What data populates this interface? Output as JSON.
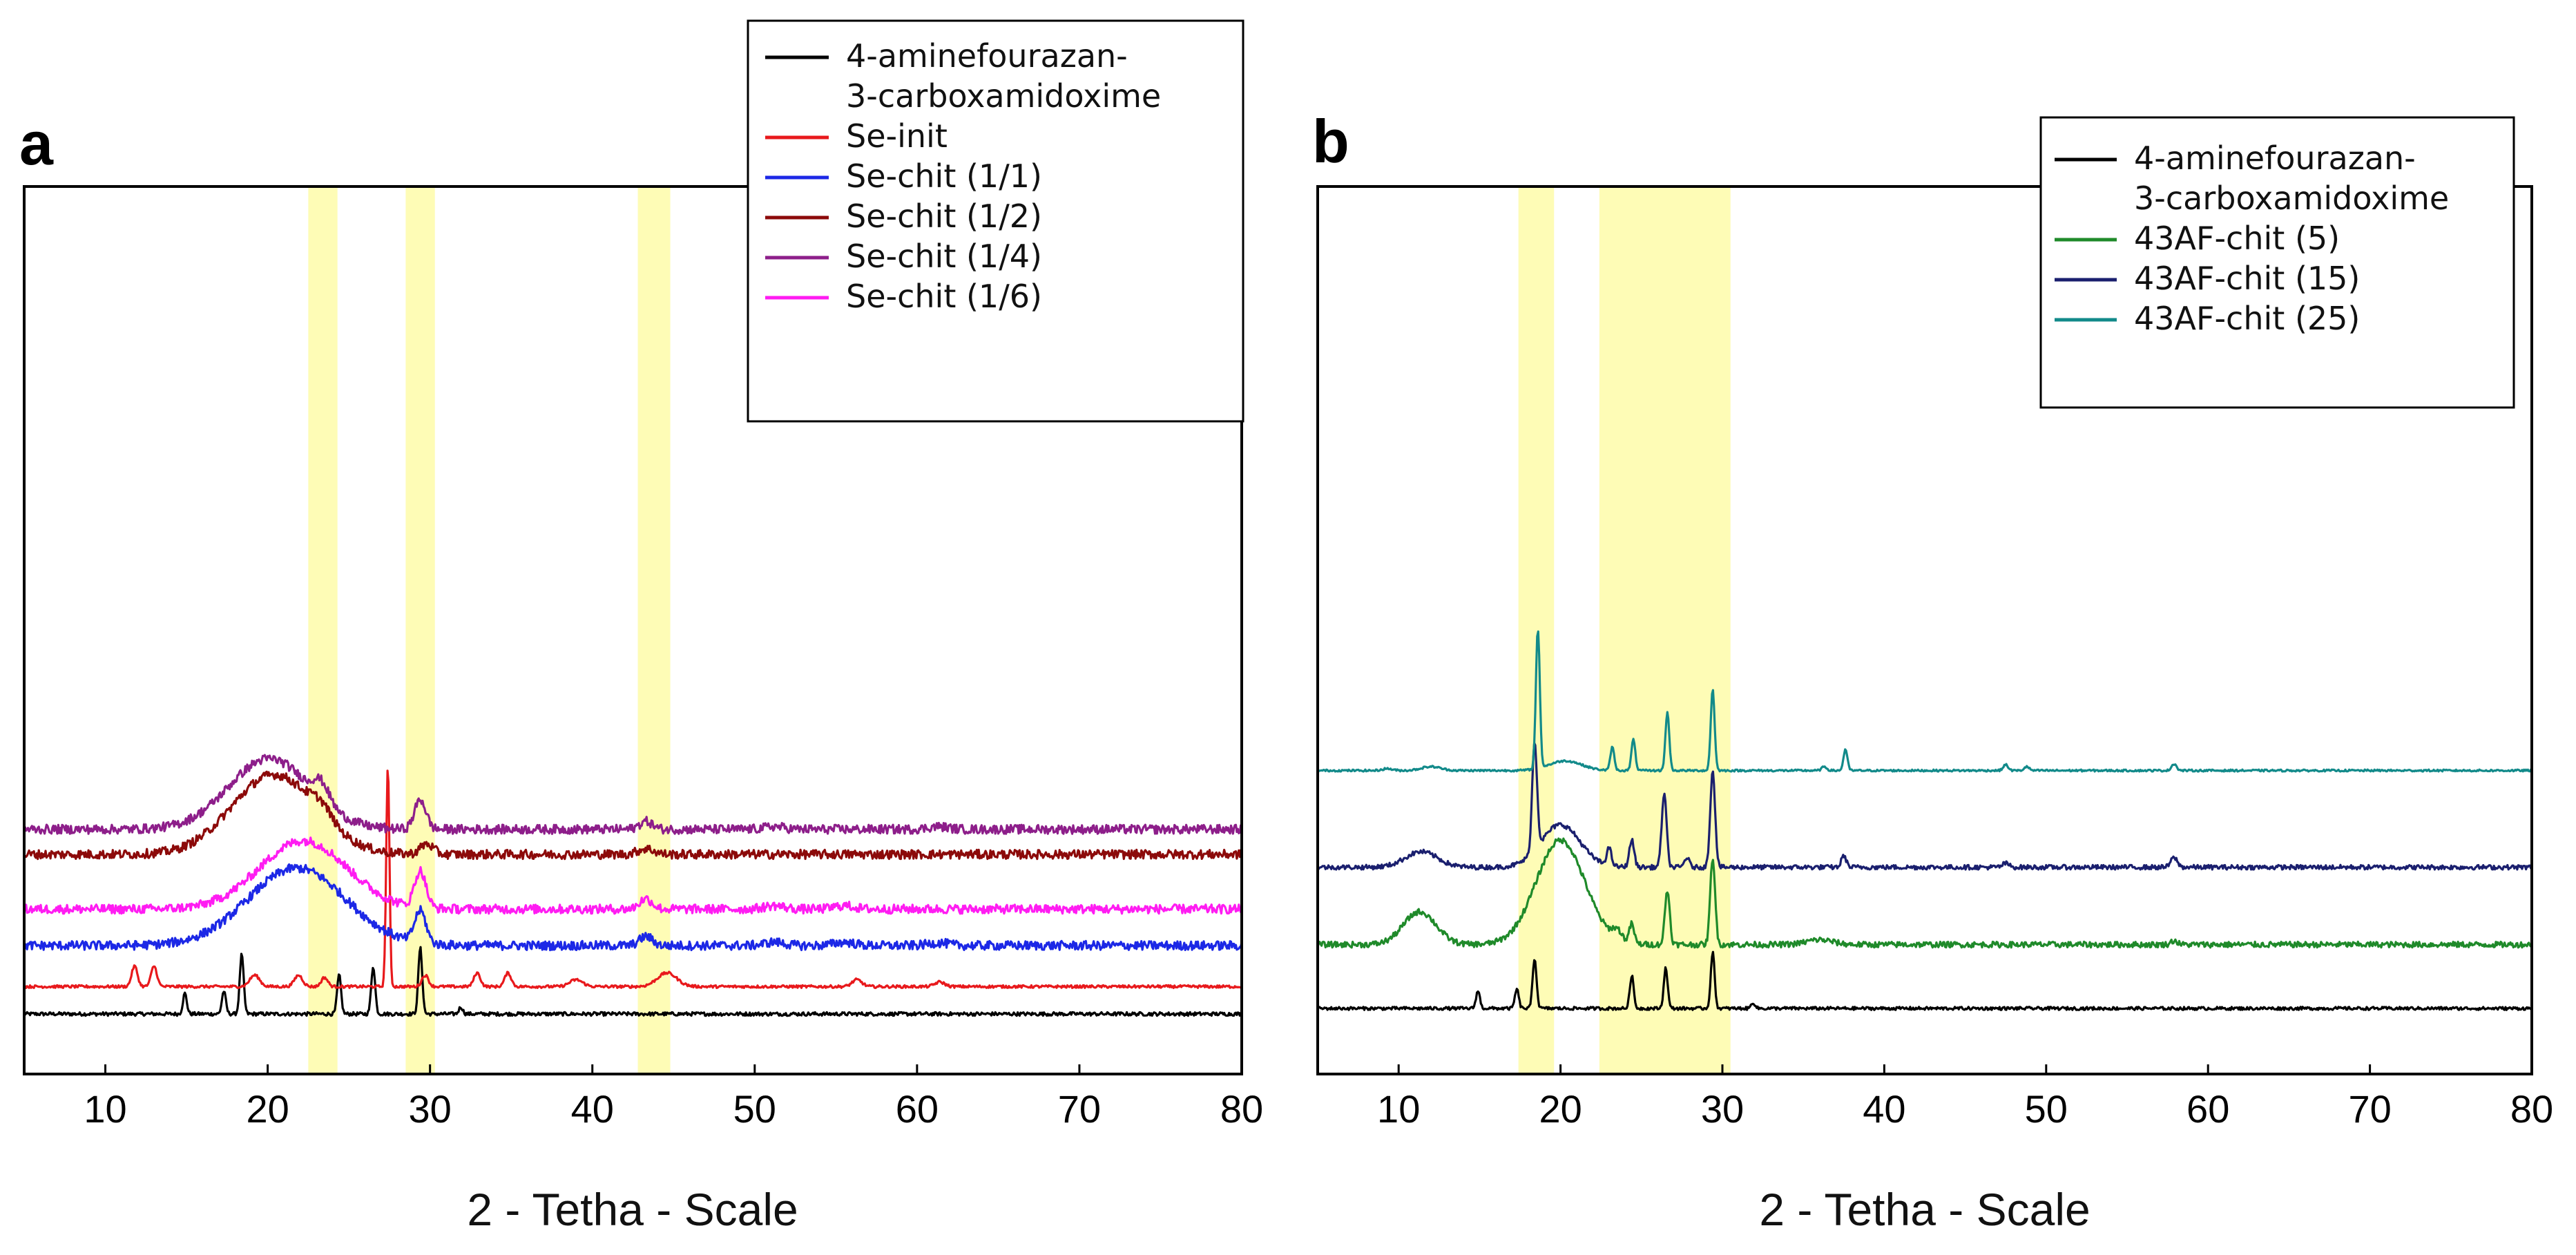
{
  "chart_data": [
    {
      "type": "line",
      "panel": "a",
      "xlabel": "2 - Tetha - Scale",
      "ylabel": "",
      "xlim": [
        5,
        80
      ],
      "xticks": [
        10,
        20,
        30,
        40,
        50,
        60,
        70,
        80
      ],
      "highlight_ranges": [
        [
          22.5,
          24.3
        ],
        [
          28.5,
          30.3
        ],
        [
          42.8,
          44.8
        ]
      ],
      "legend_position": "top-right",
      "series": [
        {
          "name": "4-aminefourazan-",
          "name_line2": "3-carboxamidoxime",
          "color": "#000000",
          "offset": 0,
          "noise": 0.08,
          "base": 0,
          "peaks": [
            [
              14.9,
              0.9,
              0.12
            ],
            [
              17.3,
              1.0,
              0.12
            ],
            [
              18.4,
              2.6,
              0.12
            ],
            [
              24.4,
              1.7,
              0.12
            ],
            [
              26.5,
              2.1,
              0.12
            ],
            [
              29.4,
              2.9,
              0.12
            ],
            [
              31.9,
              0.3,
              0.12
            ]
          ]
        },
        {
          "name": "Se-init",
          "color": "#e8191c",
          "offset": 1.1,
          "noise": 0.06,
          "base": 0.1,
          "peaks": [
            [
              11.8,
              0.9,
              0.18
            ],
            [
              13.0,
              0.9,
              0.18
            ],
            [
              19.2,
              0.5,
              0.3
            ],
            [
              21.9,
              0.5,
              0.25
            ],
            [
              23.5,
              0.4,
              0.2
            ],
            [
              27.4,
              9.7,
              0.1
            ],
            [
              29.7,
              0.5,
              0.2
            ],
            [
              32.9,
              0.6,
              0.2
            ],
            [
              34.8,
              0.6,
              0.2
            ],
            [
              39.0,
              0.3,
              0.4
            ],
            [
              44.6,
              0.6,
              0.6
            ],
            [
              56.3,
              0.3,
              0.3
            ],
            [
              61.4,
              0.2,
              0.3
            ]
          ]
        },
        {
          "name": "Se-chit (1/1)",
          "color": "#1c28e6",
          "offset": 3.0,
          "noise": 0.2,
          "base": 0,
          "peaks": [
            [
              21.8,
              3.4,
              3.0
            ],
            [
              29.4,
              1.4,
              0.35
            ],
            [
              43.3,
              0.4,
              0.4
            ],
            [
              51.2,
              0.15,
              0.6
            ],
            [
              55.5,
              0.15,
              0.6
            ],
            [
              61.3,
              0.12,
              0.6
            ]
          ]
        },
        {
          "name": "Se-chit (1/2)",
          "color": "#8c0a0a",
          "offset": 7.0,
          "noise": 0.2,
          "base": 0,
          "peaks": [
            [
              20.4,
              3.5,
              2.6
            ],
            [
              23.3,
              0.5,
              0.6
            ],
            [
              29.8,
              0.45,
              0.4
            ],
            [
              43.3,
              0.25,
              0.5
            ]
          ]
        },
        {
          "name": "Se-chit (1/4)",
          "color": "#8d1e8a",
          "offset": 8.1,
          "noise": 0.2,
          "base": 0,
          "peaks": [
            [
              20.1,
              3.1,
              2.5
            ],
            [
              23.3,
              0.8,
              0.5
            ],
            [
              29.4,
              1.3,
              0.35
            ],
            [
              43.3,
              0.35,
              0.4
            ],
            [
              51.2,
              0.12,
              0.6
            ],
            [
              61.3,
              0.12,
              0.6
            ]
          ]
        },
        {
          "name": "Se-chit (1/6)",
          "color": "#ff1cf2",
          "offset": 4.6,
          "noise": 0.2,
          "base": 0,
          "peaks": [
            [
              22.2,
              3.0,
              2.7
            ],
            [
              29.4,
              1.6,
              0.35
            ],
            [
              43.3,
              0.45,
              0.4
            ],
            [
              51.2,
              0.15,
              0.6
            ],
            [
              55.5,
              0.15,
              0.6
            ]
          ]
        }
      ]
    },
    {
      "type": "line",
      "panel": "b",
      "xlabel": "2 - Tetha - Scale",
      "ylabel": "",
      "xlim": [
        5,
        80
      ],
      "xticks": [
        10,
        20,
        30,
        40,
        50,
        60,
        70,
        80
      ],
      "highlight_ranges": [
        [
          17.4,
          19.6
        ],
        [
          22.4,
          30.5
        ]
      ],
      "legend_position": "top-right",
      "series": [
        {
          "name": "4-aminefourazan-",
          "name_line2": "3-carboxamidoxime",
          "color": "#000000",
          "offset": 0,
          "noise": 0.08,
          "base": 0,
          "peaks": [
            [
              14.9,
              0.9,
              0.12
            ],
            [
              17.3,
              1.0,
              0.12
            ],
            [
              18.4,
              2.6,
              0.12
            ],
            [
              24.4,
              1.7,
              0.12
            ],
            [
              26.5,
              2.1,
              0.12
            ],
            [
              29.4,
              2.9,
              0.12
            ],
            [
              31.9,
              0.3,
              0.12
            ]
          ]
        },
        {
          "name": "43AF-chit (5)",
          "color": "#1f8a2a",
          "offset": 3.3,
          "noise": 0.15,
          "base": 0,
          "peaks": [
            [
              11.3,
              1.7,
              1.0
            ],
            [
              20.0,
              5.4,
              1.5
            ],
            [
              23.5,
              0.5,
              0.3
            ],
            [
              24.4,
              1.0,
              0.15
            ],
            [
              26.6,
              2.8,
              0.15
            ],
            [
              29.4,
              4.5,
              0.15
            ],
            [
              36.0,
              0.25,
              0.8
            ],
            [
              57.9,
              0.2,
              0.2
            ]
          ]
        },
        {
          "name": "43AF-chit (15)",
          "color": "#1a1f6e",
          "offset": 7.3,
          "noise": 0.12,
          "base": 0,
          "peaks": [
            [
              11.4,
              0.8,
              1.0
            ],
            [
              18.4,
              5.6,
              0.15
            ],
            [
              20.0,
              2.2,
              1.2
            ],
            [
              23.0,
              0.9,
              0.15
            ],
            [
              24.4,
              1.4,
              0.15
            ],
            [
              26.4,
              3.8,
              0.15
            ],
            [
              27.8,
              0.5,
              0.15
            ],
            [
              29.4,
              5.0,
              0.15
            ],
            [
              37.5,
              0.6,
              0.15
            ],
            [
              47.5,
              0.2,
              0.2
            ],
            [
              57.9,
              0.5,
              0.2
            ]
          ]
        },
        {
          "name": "43AF-chit (25)",
          "color": "#128a8a",
          "offset": 12.3,
          "noise": 0.05,
          "base": 0,
          "peaks": [
            [
              9.3,
              0.1,
              0.3
            ],
            [
              12.0,
              0.2,
              0.6
            ],
            [
              18.6,
              7.2,
              0.12
            ],
            [
              20.3,
              0.5,
              1.0
            ],
            [
              23.2,
              1.2,
              0.12
            ],
            [
              24.5,
              1.6,
              0.12
            ],
            [
              26.6,
              3.0,
              0.12
            ],
            [
              29.4,
              4.2,
              0.12
            ],
            [
              36.3,
              0.2,
              0.15
            ],
            [
              37.6,
              1.1,
              0.12
            ],
            [
              47.5,
              0.3,
              0.15
            ],
            [
              48.8,
              0.2,
              0.15
            ],
            [
              57.9,
              0.35,
              0.15
            ]
          ]
        }
      ]
    }
  ],
  "panels": [
    {
      "letter": "a",
      "xlabel": "2 - Tetha - Scale",
      "ticks": [
        "10",
        "20",
        "30",
        "40",
        "50",
        "60",
        "70",
        "80"
      ],
      "legend": [
        {
          "label": "4-aminefourazan-",
          "label2": "3-carboxamidoxime",
          "color": "#000000"
        },
        {
          "label": "Se-init",
          "color": "#e8191c"
        },
        {
          "label": "Se-chit (1/1)",
          "color": "#1c28e6"
        },
        {
          "label": "Se-chit (1/2)",
          "color": "#8c0a0a"
        },
        {
          "label": "Se-chit (1/4)",
          "color": "#8d1e8a"
        },
        {
          "label": "Se-chit (1/6)",
          "color": "#ff1cf2"
        }
      ]
    },
    {
      "letter": "b",
      "xlabel": "2 - Tetha - Scale",
      "ticks": [
        "10",
        "20",
        "30",
        "40",
        "50",
        "60",
        "70",
        "80"
      ],
      "legend": [
        {
          "label": "4-aminefourazan-",
          "label2": "3-carboxamidoxime",
          "color": "#000000"
        },
        {
          "label": "43AF-chit (5)",
          "color": "#1f8a2a"
        },
        {
          "label": "43AF-chit (15)",
          "color": "#1a1f6e"
        },
        {
          "label": "43AF-chit (25)",
          "color": "#128a8a"
        }
      ]
    }
  ],
  "colors": {
    "highlight": "#fdfb9e",
    "axis": "#000000"
  }
}
